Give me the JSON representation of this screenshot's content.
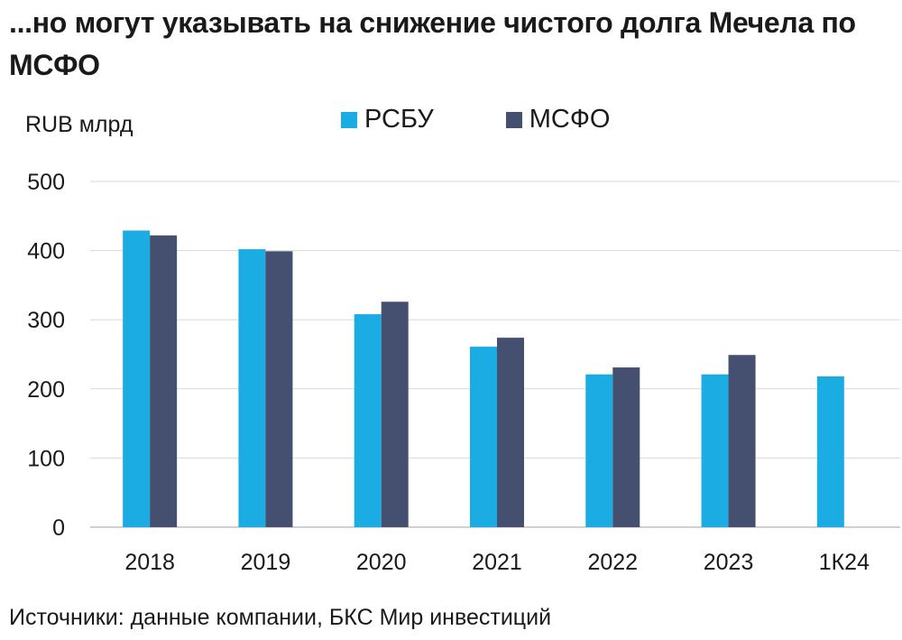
{
  "title": "...но могут указывать на снижение чистого долга Мечела по МСФО",
  "unit_label": "RUB млрд",
  "source": "Источники: данные компании, БКС Мир инвестиций",
  "colors": {
    "rsbu": "#1aace2",
    "msfo": "#454f70",
    "grid": "#d9d9d9",
    "axis": "#bfbfbf"
  },
  "chart_data": {
    "type": "bar",
    "categories": [
      "2018",
      "2019",
      "2020",
      "2021",
      "2022",
      "2023",
      "1К24"
    ],
    "series": [
      {
        "name": "РСБУ",
        "values": [
          429,
          402,
          308,
          261,
          221,
          221,
          218
        ]
      },
      {
        "name": "МСФО",
        "values": [
          422,
          399,
          326,
          274,
          231,
          249,
          null
        ]
      }
    ],
    "ylim": [
      0,
      500
    ],
    "yticks": [
      0,
      100,
      200,
      300,
      400,
      500
    ],
    "grid": true,
    "legend": "top-center"
  }
}
